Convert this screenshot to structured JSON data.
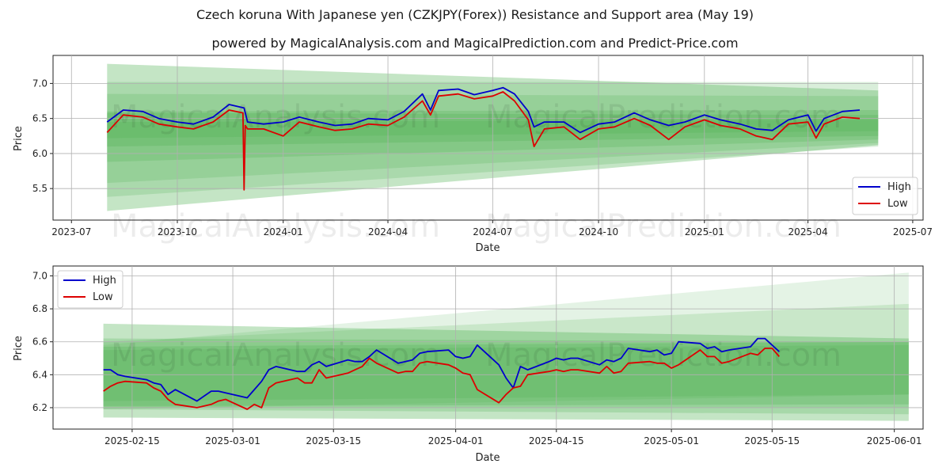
{
  "title": "Czech koruna With Japanese yen (CZKJPY(Forex)) Resistance and Support area (May 19)",
  "subtitle": "powered by MagicalAnalysis.com and MagicalPrediction.com and Predict-Price.com",
  "watermarks": [
    "MagicalAnalysis.com",
    "MagicalPrediction.com"
  ],
  "colors": {
    "high": "#0000cc",
    "low": "#dd0000",
    "band": "#4caf50"
  },
  "chart_data": [
    {
      "type": "line",
      "xlabel": "Date",
      "ylabel": "Price",
      "x_ticks": [
        "2023-07",
        "2023-10",
        "2024-01",
        "2024-04",
        "2024-07",
        "2024-10",
        "2025-01",
        "2025-04",
        "2025-07"
      ],
      "y_ticks": [
        "5.5",
        "6.0",
        "6.5",
        "7.0"
      ],
      "ylim": [
        5.05,
        7.4
      ],
      "xlim": [
        "2023-06-15",
        "2025-07-10"
      ],
      "legend": {
        "position": "lower-right",
        "entries": [
          "High",
          "Low"
        ]
      },
      "grid": true,
      "series": [
        {
          "name": "High",
          "x": [
            "2023-08-01",
            "2023-08-15",
            "2023-09-01",
            "2023-09-15",
            "2023-10-01",
            "2023-10-15",
            "2023-11-01",
            "2023-11-15",
            "2023-11-28",
            "2023-12-01",
            "2023-12-15",
            "2024-01-01",
            "2024-01-15",
            "2024-02-01",
            "2024-02-15",
            "2024-03-01",
            "2024-03-15",
            "2024-04-01",
            "2024-04-15",
            "2024-05-01",
            "2024-05-08",
            "2024-05-15",
            "2024-06-01",
            "2024-06-15",
            "2024-07-01",
            "2024-07-10",
            "2024-07-20",
            "2024-08-01",
            "2024-08-06",
            "2024-08-15",
            "2024-09-01",
            "2024-09-15",
            "2024-10-01",
            "2024-10-15",
            "2024-11-01",
            "2024-11-15",
            "2024-12-01",
            "2024-12-15",
            "2025-01-01",
            "2025-01-15",
            "2025-02-01",
            "2025-02-15",
            "2025-03-01",
            "2025-03-15",
            "2025-04-01",
            "2025-04-08",
            "2025-04-15",
            "2025-05-01",
            "2025-05-16"
          ],
          "values": [
            6.45,
            6.62,
            6.6,
            6.5,
            6.45,
            6.42,
            6.52,
            6.7,
            6.65,
            6.45,
            6.42,
            6.45,
            6.52,
            6.45,
            6.4,
            6.42,
            6.5,
            6.48,
            6.6,
            6.85,
            6.62,
            6.9,
            6.92,
            6.84,
            6.9,
            6.94,
            6.85,
            6.6,
            6.38,
            6.45,
            6.45,
            6.3,
            6.42,
            6.45,
            6.58,
            6.48,
            6.4,
            6.45,
            6.55,
            6.48,
            6.42,
            6.35,
            6.33,
            6.48,
            6.55,
            6.32,
            6.5,
            6.6,
            6.62
          ]
        },
        {
          "name": "Low",
          "x": [
            "2023-08-01",
            "2023-08-15",
            "2023-09-01",
            "2023-09-15",
            "2023-10-01",
            "2023-10-15",
            "2023-11-01",
            "2023-11-15",
            "2023-11-27",
            "2023-11-28",
            "2023-11-29",
            "2023-12-01",
            "2023-12-15",
            "2024-01-01",
            "2024-01-15",
            "2024-02-01",
            "2024-02-15",
            "2024-03-01",
            "2024-03-15",
            "2024-04-01",
            "2024-04-15",
            "2024-05-01",
            "2024-05-08",
            "2024-05-15",
            "2024-06-01",
            "2024-06-15",
            "2024-07-01",
            "2024-07-10",
            "2024-07-20",
            "2024-08-01",
            "2024-08-06",
            "2024-08-15",
            "2024-09-01",
            "2024-09-15",
            "2024-10-01",
            "2024-10-15",
            "2024-11-01",
            "2024-11-15",
            "2024-12-01",
            "2024-12-15",
            "2025-01-01",
            "2025-01-15",
            "2025-02-01",
            "2025-02-15",
            "2025-03-01",
            "2025-03-15",
            "2025-04-01",
            "2025-04-08",
            "2025-04-15",
            "2025-05-01",
            "2025-05-16"
          ],
          "values": [
            6.3,
            6.55,
            6.52,
            6.42,
            6.38,
            6.35,
            6.45,
            6.62,
            6.58,
            5.48,
            6.4,
            6.35,
            6.35,
            6.25,
            6.45,
            6.38,
            6.33,
            6.35,
            6.42,
            6.4,
            6.52,
            6.75,
            6.55,
            6.82,
            6.85,
            6.78,
            6.82,
            6.88,
            6.75,
            6.48,
            6.1,
            6.35,
            6.38,
            6.2,
            6.35,
            6.38,
            6.5,
            6.4,
            6.2,
            6.38,
            6.48,
            6.4,
            6.35,
            6.25,
            6.2,
            6.42,
            6.45,
            6.22,
            6.42,
            6.52,
            6.5
          ]
        }
      ]
    },
    {
      "type": "line",
      "xlabel": "Date",
      "ylabel": "Price",
      "x_ticks": [
        "2025-02-15",
        "2025-03-01",
        "2025-03-15",
        "2025-04-01",
        "2025-04-15",
        "2025-05-01",
        "2025-05-15",
        "2025-06-01"
      ],
      "y_ticks": [
        "6.2",
        "6.4",
        "6.6",
        "6.8",
        "7.0"
      ],
      "ylim": [
        6.07,
        7.06
      ],
      "xlim": [
        "2025-02-04",
        "2025-06-05"
      ],
      "legend": {
        "position": "top-left",
        "entries": [
          "High",
          "Low"
        ]
      },
      "grid": true,
      "series": [
        {
          "name": "High",
          "x": [
            "2025-02-11",
            "2025-02-12",
            "2025-02-13",
            "2025-02-14",
            "2025-02-17",
            "2025-02-18",
            "2025-02-19",
            "2025-02-20",
            "2025-02-21",
            "2025-02-24",
            "2025-02-25",
            "2025-02-26",
            "2025-02-27",
            "2025-02-28",
            "2025-03-03",
            "2025-03-04",
            "2025-03-05",
            "2025-03-06",
            "2025-03-07",
            "2025-03-10",
            "2025-03-11",
            "2025-03-12",
            "2025-03-13",
            "2025-03-14",
            "2025-03-17",
            "2025-03-18",
            "2025-03-19",
            "2025-03-20",
            "2025-03-21",
            "2025-03-24",
            "2025-03-25",
            "2025-03-26",
            "2025-03-27",
            "2025-03-28",
            "2025-03-31",
            "2025-04-01",
            "2025-04-02",
            "2025-04-03",
            "2025-04-04",
            "2025-04-07",
            "2025-04-08",
            "2025-04-09",
            "2025-04-10",
            "2025-04-11",
            "2025-04-14",
            "2025-04-15",
            "2025-04-16",
            "2025-04-17",
            "2025-04-18",
            "2025-04-21",
            "2025-04-22",
            "2025-04-23",
            "2025-04-24",
            "2025-04-25",
            "2025-04-28",
            "2025-04-29",
            "2025-04-30",
            "2025-05-01",
            "2025-05-02",
            "2025-05-05",
            "2025-05-06",
            "2025-05-07",
            "2025-05-08",
            "2025-05-09",
            "2025-05-12",
            "2025-05-13",
            "2025-05-14",
            "2025-05-15",
            "2025-05-16"
          ],
          "values": [
            6.43,
            6.43,
            6.4,
            6.39,
            6.37,
            6.35,
            6.34,
            6.28,
            6.31,
            6.24,
            6.27,
            6.3,
            6.3,
            6.29,
            6.26,
            6.31,
            6.36,
            6.43,
            6.45,
            6.42,
            6.42,
            6.46,
            6.48,
            6.45,
            6.49,
            6.48,
            6.48,
            6.51,
            6.55,
            6.47,
            6.48,
            6.49,
            6.53,
            6.54,
            6.55,
            6.51,
            6.5,
            6.51,
            6.58,
            6.46,
            6.38,
            6.32,
            6.45,
            6.43,
            6.48,
            6.5,
            6.49,
            6.5,
            6.5,
            6.46,
            6.49,
            6.48,
            6.5,
            6.56,
            6.54,
            6.55,
            6.52,
            6.53,
            6.6,
            6.59,
            6.56,
            6.57,
            6.54,
            6.55,
            6.57,
            6.62,
            6.62,
            6.58,
            6.54
          ]
        },
        {
          "name": "Low",
          "x": [
            "2025-02-11",
            "2025-02-12",
            "2025-02-13",
            "2025-02-14",
            "2025-02-17",
            "2025-02-18",
            "2025-02-19",
            "2025-02-20",
            "2025-02-21",
            "2025-02-24",
            "2025-02-25",
            "2025-02-26",
            "2025-02-27",
            "2025-02-28",
            "2025-03-03",
            "2025-03-04",
            "2025-03-05",
            "2025-03-06",
            "2025-03-07",
            "2025-03-10",
            "2025-03-11",
            "2025-03-12",
            "2025-03-13",
            "2025-03-14",
            "2025-03-17",
            "2025-03-18",
            "2025-03-19",
            "2025-03-20",
            "2025-03-21",
            "2025-03-24",
            "2025-03-25",
            "2025-03-26",
            "2025-03-27",
            "2025-03-28",
            "2025-03-31",
            "2025-04-01",
            "2025-04-02",
            "2025-04-03",
            "2025-04-04",
            "2025-04-07",
            "2025-04-08",
            "2025-04-09",
            "2025-04-10",
            "2025-04-11",
            "2025-04-14",
            "2025-04-15",
            "2025-04-16",
            "2025-04-17",
            "2025-04-18",
            "2025-04-21",
            "2025-04-22",
            "2025-04-23",
            "2025-04-24",
            "2025-04-25",
            "2025-04-28",
            "2025-04-29",
            "2025-04-30",
            "2025-05-01",
            "2025-05-02",
            "2025-05-05",
            "2025-05-06",
            "2025-05-07",
            "2025-05-08",
            "2025-05-09",
            "2025-05-12",
            "2025-05-13",
            "2025-05-14",
            "2025-05-15",
            "2025-05-16"
          ],
          "values": [
            6.3,
            6.33,
            6.35,
            6.36,
            6.35,
            6.32,
            6.3,
            6.25,
            6.22,
            6.2,
            6.21,
            6.22,
            6.24,
            6.25,
            6.19,
            6.22,
            6.2,
            6.32,
            6.35,
            6.38,
            6.35,
            6.35,
            6.43,
            6.38,
            6.41,
            6.43,
            6.45,
            6.5,
            6.47,
            6.41,
            6.42,
            6.42,
            6.47,
            6.48,
            6.46,
            6.44,
            6.41,
            6.4,
            6.31,
            6.23,
            6.28,
            6.32,
            6.33,
            6.4,
            6.42,
            6.43,
            6.42,
            6.43,
            6.43,
            6.41,
            6.45,
            6.41,
            6.42,
            6.47,
            6.48,
            6.47,
            6.47,
            6.44,
            6.46,
            6.55,
            6.51,
            6.51,
            6.47,
            6.48,
            6.53,
            6.52,
            6.56,
            6.56,
            6.51
          ]
        }
      ]
    }
  ]
}
